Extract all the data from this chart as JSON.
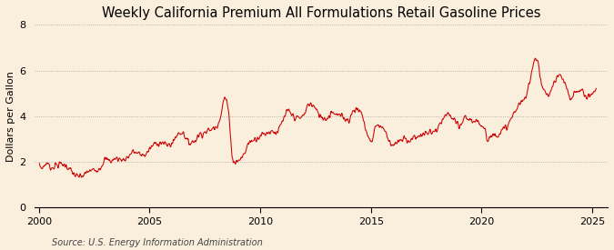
{
  "title": "Weekly California Premium All Formulations Retail Gasoline Prices",
  "ylabel": "Dollars per Gallon",
  "source": "Source: U.S. Energy Information Administration",
  "line_color": "#cc0000",
  "background_color": "#faeedd",
  "grid_color": "#999999",
  "ylim": [
    0,
    8
  ],
  "yticks": [
    0,
    2,
    4,
    6,
    8
  ],
  "xlim_start": 1999.8,
  "xlim_end": 2025.7,
  "xticks": [
    2000,
    2005,
    2010,
    2015,
    2020,
    2025
  ],
  "title_fontsize": 10.5,
  "label_fontsize": 8,
  "source_fontsize": 7,
  "key_points": [
    [
      2000.0,
      1.85
    ],
    [
      2000.15,
      1.75
    ],
    [
      2000.35,
      1.95
    ],
    [
      2000.55,
      1.75
    ],
    [
      2000.75,
      1.85
    ],
    [
      2001.0,
      1.9
    ],
    [
      2001.2,
      1.85
    ],
    [
      2001.5,
      1.55
    ],
    [
      2001.75,
      1.35
    ],
    [
      2002.0,
      1.4
    ],
    [
      2002.25,
      1.6
    ],
    [
      2002.5,
      1.65
    ],
    [
      2002.75,
      1.75
    ],
    [
      2003.0,
      2.1
    ],
    [
      2003.25,
      2.05
    ],
    [
      2003.5,
      2.15
    ],
    [
      2003.75,
      2.1
    ],
    [
      2004.0,
      2.2
    ],
    [
      2004.25,
      2.45
    ],
    [
      2004.5,
      2.35
    ],
    [
      2004.75,
      2.3
    ],
    [
      2005.0,
      2.55
    ],
    [
      2005.25,
      2.8
    ],
    [
      2005.5,
      2.85
    ],
    [
      2005.75,
      2.75
    ],
    [
      2006.0,
      2.8
    ],
    [
      2006.25,
      3.2
    ],
    [
      2006.5,
      3.3
    ],
    [
      2006.75,
      2.85
    ],
    [
      2007.0,
      2.9
    ],
    [
      2007.25,
      3.2
    ],
    [
      2007.5,
      3.3
    ],
    [
      2007.75,
      3.4
    ],
    [
      2008.0,
      3.55
    ],
    [
      2008.2,
      4.0
    ],
    [
      2008.4,
      4.8
    ],
    [
      2008.55,
      4.3
    ],
    [
      2008.65,
      3.3
    ],
    [
      2008.75,
      2.1
    ],
    [
      2008.9,
      2.0
    ],
    [
      2009.0,
      2.05
    ],
    [
      2009.25,
      2.3
    ],
    [
      2009.5,
      2.85
    ],
    [
      2009.75,
      3.0
    ],
    [
      2010.0,
      3.15
    ],
    [
      2010.25,
      3.25
    ],
    [
      2010.5,
      3.35
    ],
    [
      2010.75,
      3.3
    ],
    [
      2011.0,
      3.75
    ],
    [
      2011.25,
      4.2
    ],
    [
      2011.5,
      4.0
    ],
    [
      2011.75,
      3.9
    ],
    [
      2012.0,
      4.1
    ],
    [
      2012.2,
      4.55
    ],
    [
      2012.4,
      4.45
    ],
    [
      2012.5,
      4.3
    ],
    [
      2012.75,
      4.0
    ],
    [
      2013.0,
      3.9
    ],
    [
      2013.25,
      4.2
    ],
    [
      2013.5,
      4.05
    ],
    [
      2013.75,
      3.95
    ],
    [
      2014.0,
      3.85
    ],
    [
      2014.25,
      4.3
    ],
    [
      2014.5,
      4.25
    ],
    [
      2014.75,
      3.5
    ],
    [
      2015.0,
      2.9
    ],
    [
      2015.25,
      3.6
    ],
    [
      2015.5,
      3.55
    ],
    [
      2015.75,
      3.1
    ],
    [
      2016.0,
      2.75
    ],
    [
      2016.25,
      2.85
    ],
    [
      2016.5,
      3.0
    ],
    [
      2016.75,
      2.95
    ],
    [
      2017.0,
      3.1
    ],
    [
      2017.25,
      3.15
    ],
    [
      2017.5,
      3.25
    ],
    [
      2017.75,
      3.3
    ],
    [
      2018.0,
      3.4
    ],
    [
      2018.25,
      3.85
    ],
    [
      2018.5,
      4.05
    ],
    [
      2018.75,
      3.85
    ],
    [
      2019.0,
      3.5
    ],
    [
      2019.25,
      3.95
    ],
    [
      2019.5,
      3.85
    ],
    [
      2019.75,
      3.7
    ],
    [
      2020.0,
      3.65
    ],
    [
      2020.15,
      3.55
    ],
    [
      2020.25,
      2.95
    ],
    [
      2020.4,
      3.1
    ],
    [
      2020.6,
      3.2
    ],
    [
      2020.75,
      3.25
    ],
    [
      2021.0,
      3.4
    ],
    [
      2021.25,
      3.7
    ],
    [
      2021.5,
      4.2
    ],
    [
      2021.75,
      4.55
    ],
    [
      2022.0,
      4.8
    ],
    [
      2022.15,
      5.5
    ],
    [
      2022.3,
      6.1
    ],
    [
      2022.45,
      6.6
    ],
    [
      2022.55,
      6.4
    ],
    [
      2022.65,
      5.6
    ],
    [
      2022.75,
      5.3
    ],
    [
      2022.85,
      5.15
    ],
    [
      2023.0,
      4.9
    ],
    [
      2023.15,
      5.15
    ],
    [
      2023.3,
      5.5
    ],
    [
      2023.5,
      5.8
    ],
    [
      2023.65,
      5.6
    ],
    [
      2023.75,
      5.4
    ],
    [
      2023.9,
      5.1
    ],
    [
      2024.0,
      4.7
    ],
    [
      2024.2,
      5.0
    ],
    [
      2024.4,
      5.15
    ],
    [
      2024.6,
      5.05
    ],
    [
      2024.8,
      4.85
    ],
    [
      2025.0,
      5.0
    ],
    [
      2025.15,
      5.1
    ]
  ]
}
